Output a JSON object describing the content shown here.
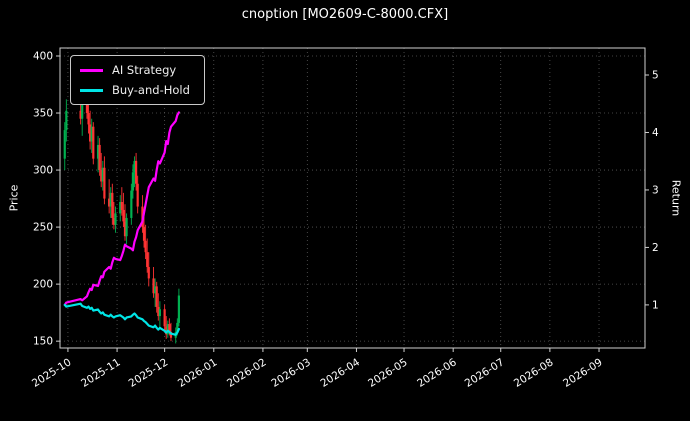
{
  "title": "cnoption [MO2609-C-8000.CFX]",
  "chart_data": {
    "type": "candlestick+line",
    "title": "cnoption [MO2609-C-8000.CFX]",
    "grid": true,
    "legend_position": "upper-left",
    "colors": {
      "background": "#000000",
      "text": "#ffffff",
      "grid": "#585858",
      "up": "#00b050",
      "down": "#ff3333",
      "ai_strategy": "#ff00ff",
      "buy_and_hold": "#00e5e6"
    },
    "left_axis": {
      "label": "Price",
      "ticks": [
        150,
        200,
        250,
        300,
        350,
        400
      ],
      "ylim": [
        144,
        407
      ]
    },
    "right_axis": {
      "label": "Return",
      "ticks": [
        1,
        2,
        3,
        4,
        5
      ],
      "ylim": [
        0.25,
        5.47
      ]
    },
    "x_axis": {
      "tick_labels": [
        "2025-10",
        "2025-11",
        "2025-12",
        "2026-01",
        "2026-02",
        "2026-03",
        "2026-04",
        "2026-05",
        "2026-06",
        "2026-07",
        "2026-08",
        "2026-09"
      ],
      "domain": [
        "2025-09-26",
        "2026-09-30"
      ]
    },
    "dates": [
      "2025-09-29",
      "2025-09-30",
      "2025-10-09",
      "2025-10-10",
      "2025-10-13",
      "2025-10-14",
      "2025-10-15",
      "2025-10-16",
      "2025-10-17",
      "2025-10-20",
      "2025-10-21",
      "2025-10-22",
      "2025-10-23",
      "2025-10-24",
      "2025-10-27",
      "2025-10-28",
      "2025-10-29",
      "2025-10-30",
      "2025-10-31",
      "2025-11-03",
      "2025-11-04",
      "2025-11-05",
      "2025-11-06",
      "2025-11-07",
      "2025-11-10",
      "2025-11-11",
      "2025-11-12",
      "2025-11-13",
      "2025-11-14",
      "2025-11-17",
      "2025-11-18",
      "2025-11-19",
      "2025-11-20",
      "2025-11-21",
      "2025-11-24",
      "2025-11-25",
      "2025-11-26",
      "2025-11-27",
      "2025-11-28",
      "2025-12-01",
      "2025-12-02",
      "2025-12-03",
      "2025-12-04",
      "2025-12-05",
      "2025-12-08",
      "2025-12-09",
      "2025-12-10"
    ],
    "ohlc": [
      [
        310,
        342,
        300,
        335
      ],
      [
        335,
        362,
        325,
        352
      ],
      [
        352,
        395,
        340,
        345
      ],
      [
        345,
        388,
        330,
        378
      ],
      [
        378,
        392,
        345,
        350
      ],
      [
        350,
        368,
        332,
        340
      ],
      [
        340,
        352,
        318,
        325
      ],
      [
        325,
        345,
        315,
        338
      ],
      [
        338,
        342,
        305,
        310
      ],
      [
        310,
        330,
        298,
        322
      ],
      [
        322,
        328,
        295,
        300
      ],
      [
        300,
        315,
        285,
        290
      ],
      [
        290,
        308,
        282,
        302
      ],
      [
        302,
        312,
        270,
        275
      ],
      [
        275,
        292,
        262,
        268
      ],
      [
        268,
        285,
        258,
        280
      ],
      [
        280,
        288,
        252,
        258
      ],
      [
        258,
        272,
        248,
        252
      ],
      [
        252,
        268,
        245,
        262
      ],
      [
        262,
        278,
        255,
        272
      ],
      [
        272,
        285,
        260,
        265
      ],
      [
        265,
        280,
        250,
        255
      ],
      [
        255,
        270,
        238,
        242
      ],
      [
        242,
        262,
        235,
        258
      ],
      [
        258,
        288,
        252,
        282
      ],
      [
        282,
        305,
        275,
        298
      ],
      [
        298,
        312,
        285,
        308
      ],
      [
        308,
        315,
        282,
        288
      ],
      [
        288,
        295,
        262,
        268
      ],
      [
        268,
        278,
        245,
        250
      ],
      [
        250,
        262,
        232,
        238
      ],
      [
        238,
        252,
        222,
        228
      ],
      [
        228,
        240,
        210,
        215
      ],
      [
        215,
        228,
        198,
        205
      ],
      [
        205,
        215,
        188,
        192
      ],
      [
        192,
        205,
        180,
        198
      ],
      [
        198,
        202,
        175,
        180
      ],
      [
        180,
        192,
        168,
        172
      ],
      [
        172,
        185,
        162,
        178
      ],
      [
        178,
        182,
        158,
        163
      ],
      [
        163,
        172,
        152,
        156
      ],
      [
        156,
        168,
        153,
        165
      ],
      [
        165,
        170,
        155,
        158
      ],
      [
        158,
        166,
        150,
        153
      ],
      [
        153,
        162,
        148,
        158
      ],
      [
        158,
        170,
        155,
        166
      ],
      [
        166,
        196,
        163,
        190
      ]
    ],
    "series": [
      {
        "name": "AI Strategy",
        "axis": "right",
        "color": "#ff00ff",
        "values": [
          1.0,
          1.04,
          1.1,
          1.08,
          1.15,
          1.22,
          1.28,
          1.26,
          1.35,
          1.33,
          1.42,
          1.5,
          1.48,
          1.58,
          1.66,
          1.63,
          1.74,
          1.82,
          1.8,
          1.78,
          1.85,
          1.94,
          2.05,
          2.02,
          1.98,
          1.95,
          2.1,
          2.18,
          2.3,
          2.45,
          2.6,
          2.75,
          2.9,
          3.05,
          3.2,
          3.16,
          3.35,
          3.5,
          3.46,
          3.65,
          3.85,
          3.8,
          4.0,
          4.1,
          4.2,
          4.3,
          4.35
        ]
      },
      {
        "name": "Buy-and-Hold",
        "axis": "right",
        "color": "#00e5e6",
        "values": [
          1.0,
          0.97,
          1.02,
          0.98,
          0.95,
          0.97,
          0.93,
          0.95,
          0.9,
          0.92,
          0.88,
          0.85,
          0.87,
          0.83,
          0.8,
          0.83,
          0.8,
          0.78,
          0.8,
          0.82,
          0.8,
          0.78,
          0.75,
          0.78,
          0.8,
          0.83,
          0.85,
          0.82,
          0.78,
          0.75,
          0.72,
          0.7,
          0.67,
          0.64,
          0.61,
          0.64,
          0.6,
          0.57,
          0.6,
          0.55,
          0.52,
          0.55,
          0.53,
          0.5,
          0.48,
          0.52,
          0.58
        ]
      }
    ]
  }
}
